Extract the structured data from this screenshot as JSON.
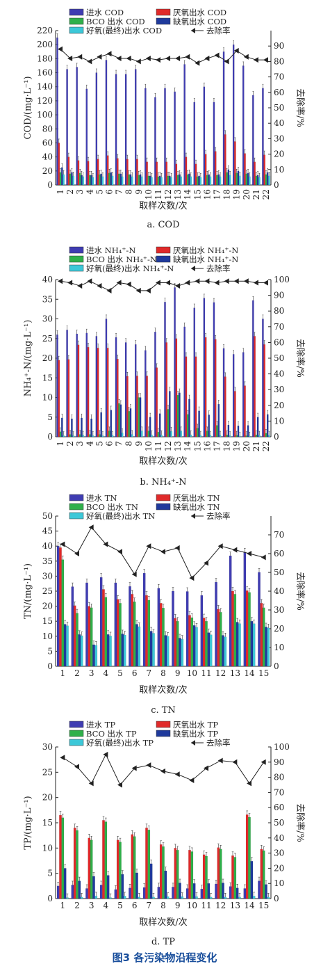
{
  "figure": {
    "caption": "图3 各污染物沿程变化"
  },
  "colors": {
    "influent": "#3f3cb2",
    "anaerobic": "#e02a2a",
    "bco": "#2fb04a",
    "anoxic": "#1f3a9c",
    "aerobic": "#3cc8d8",
    "removal": "#222222"
  },
  "chart_data": [
    {
      "type": "bar",
      "subtitle": "a. COD",
      "xlabel": "取样次数/次",
      "ylabel": "COD/(mg·L⁻¹)",
      "y2label": "去除率/%",
      "ylim": [
        0,
        220
      ],
      "yticks": [
        0,
        20,
        40,
        60,
        80,
        100,
        120,
        140,
        160,
        180,
        200,
        220
      ],
      "y2lim": [
        0,
        100
      ],
      "y2ticks": [
        0,
        10,
        20,
        30,
        40,
        50,
        60,
        70,
        80,
        90
      ],
      "categories": [
        "1",
        "2",
        "3",
        "4",
        "5",
        "6",
        "7",
        "8",
        "9",
        "10",
        "11",
        "12",
        "13",
        "14",
        "15",
        "16",
        "17",
        "18",
        "19",
        "20",
        "21",
        "22"
      ],
      "series": [
        {
          "name": "进水 COD",
          "color": "#3f3cb2",
          "values": [
            210,
            165,
            168,
            137,
            160,
            178,
            158,
            158,
            165,
            138,
            125,
            138,
            133,
            172,
            118,
            140,
            118,
            190,
            200,
            170,
            128,
            138
          ]
        },
        {
          "name": "厌氧出水 COD",
          "color": "#e02a2a",
          "values": [
            60,
            40,
            35,
            34,
            37,
            42,
            38,
            37,
            37,
            33,
            33,
            33,
            30,
            40,
            30,
            44,
            48,
            72,
            62,
            45,
            33,
            43
          ]
        },
        {
          "name": "BCO 出水 COD",
          "color": "#2fb04a",
          "values": [
            18,
            16,
            17,
            14,
            15,
            17,
            16,
            15,
            14,
            13,
            12,
            13,
            14,
            15,
            12,
            14,
            14,
            18,
            17,
            16,
            13,
            15
          ]
        },
        {
          "name": "缺氧出水 COD",
          "color": "#1f3a9c",
          "values": [
            25,
            18,
            14,
            14,
            16,
            18,
            16,
            15,
            15,
            13,
            13,
            13,
            15,
            16,
            13,
            15,
            15,
            22,
            20,
            17,
            14,
            18
          ]
        },
        {
          "name": "好氧(最终)出水 COD",
          "color": "#3cc8d8",
          "values": [
            15,
            13,
            12,
            11,
            12,
            13,
            12,
            12,
            12,
            11,
            11,
            11,
            12,
            12,
            11,
            12,
            12,
            14,
            13,
            12,
            11,
            13
          ]
        }
      ],
      "removal": {
        "name": "去除率",
        "values": [
          88,
          82,
          83,
          80,
          83,
          85,
          82,
          82,
          80,
          82,
          81,
          82,
          82,
          83,
          79,
          82,
          84,
          80,
          87,
          83,
          81,
          81
        ]
      }
    },
    {
      "type": "bar",
      "subtitle": "b. NH₄⁺-N",
      "xlabel": "取样次数/次",
      "ylabel": "NH₄⁺-N/(mg·L⁻¹)",
      "y2label": "去除率/%",
      "ylim": [
        0,
        40
      ],
      "yticks": [
        0,
        5,
        10,
        15,
        20,
        25,
        30,
        35,
        40
      ],
      "y2lim": [
        0,
        100
      ],
      "y2ticks": [
        0,
        10,
        20,
        30,
        40,
        50,
        60,
        70,
        80,
        90,
        100
      ],
      "categories": [
        "1",
        "2",
        "3",
        "4",
        "5",
        "6",
        "7",
        "8",
        "9",
        "10",
        "11",
        "12",
        "13",
        "14",
        "15",
        "16",
        "17",
        "18",
        "19",
        "20",
        "21",
        "22"
      ],
      "series": [
        {
          "name": "进水 NH₄⁺-N",
          "color": "#3f3cb2",
          "values": [
            26,
            27.2,
            26.2,
            26.4,
            25.6,
            30,
            25.3,
            24,
            23.5,
            22,
            26.7,
            34.3,
            38,
            28,
            32.8,
            35.3,
            34.2,
            22.5,
            21,
            21.5,
            34.7,
            30
          ]
        },
        {
          "name": "厌氧出水 NH₄⁺-N",
          "color": "#e02a2a",
          "values": [
            19.5,
            19.7,
            23.4,
            22.8,
            22.6,
            22.6,
            19.8,
            15.4,
            15.5,
            15.5,
            17.6,
            24,
            25,
            20.4,
            20.4,
            25.3,
            24.8,
            15.3,
            11.6,
            13,
            25.6,
            23.5
          ]
        },
        {
          "name": "BCO 出水 NH₄⁺-N",
          "color": "#2fb04a",
          "values": [
            1.3,
            0.6,
            0.6,
            0.6,
            0.6,
            1.5,
            8.5,
            6.5,
            10,
            1.5,
            1.2,
            7,
            10.6,
            5.7,
            2.2,
            1.5,
            2.9,
            0.5,
            0.4,
            0.3,
            0.5,
            0.9
          ]
        },
        {
          "name": "缺氧出水 NH₄⁺-N",
          "color": "#1f3a9c",
          "values": [
            4.8,
            4.6,
            4.8,
            4.6,
            6.2,
            6.8,
            8.2,
            7.2,
            10,
            5,
            5.9,
            11.6,
            11.2,
            9.6,
            6.6,
            5.6,
            8.3,
            3,
            2.8,
            2.9,
            5,
            5.7
          ]
        },
        {
          "name": "好氧(最终)出水 NH₄⁺-N",
          "color": "#3cc8d8",
          "values": [
            0.3,
            0.3,
            0.4,
            0.3,
            0.3,
            0.4,
            1,
            0.6,
            1.5,
            0.5,
            0.5,
            1.4,
            1.5,
            0.5,
            0.4,
            0.4,
            0.4,
            0.3,
            0.2,
            0.2,
            0.4,
            0.4
          ]
        }
      ],
      "removal": {
        "name": "去除率",
        "values": [
          99,
          98,
          96,
          99,
          96,
          93,
          98,
          97,
          93,
          93,
          98,
          98,
          96,
          98,
          99,
          99,
          98,
          99,
          99,
          99,
          98,
          98
        ]
      }
    },
    {
      "type": "bar",
      "subtitle": "c. TN",
      "xlabel": "取样次数/次",
      "ylabel": "TN/(mg·L⁻¹)",
      "y2label": "去除率/%",
      "ylim": [
        0,
        50
      ],
      "yticks": [
        0,
        5,
        10,
        15,
        20,
        25,
        30,
        35,
        40,
        45,
        50
      ],
      "y2lim": [
        0,
        80
      ],
      "y2ticks": [
        0,
        10,
        20,
        30,
        40,
        50,
        60,
        70
      ],
      "categories": [
        "1",
        "2",
        "3",
        "4",
        "5",
        "6",
        "7",
        "8",
        "9",
        "10",
        "11",
        "12",
        "13",
        "14",
        "15"
      ],
      "series": [
        {
          "name": "进水 TN",
          "color": "#3f3cb2",
          "values": [
            40,
            26.5,
            27.8,
            29.6,
            27.8,
            26.6,
            31,
            26,
            25,
            24.9,
            23.6,
            28,
            36.8,
            38,
            31.3
          ]
        },
        {
          "name": "厌氧出水 TN",
          "color": "#e02a2a",
          "values": [
            39.5,
            20.2,
            20,
            25.6,
            22.3,
            24,
            23.6,
            21,
            16,
            17,
            16.1,
            19,
            25,
            25.2,
            21
          ]
        },
        {
          "name": "BCO 出水 TN",
          "color": "#2fb04a",
          "values": [
            35.5,
            17.7,
            19.5,
            23,
            21,
            21.5,
            22,
            19.4,
            15,
            16.2,
            15,
            18,
            24,
            24.6,
            19.5
          ]
        },
        {
          "name": "缺氧出水 TN",
          "color": "#1f3a9c",
          "values": [
            14,
            10.6,
            7.2,
            10.6,
            10.8,
            14,
            11.7,
            10.3,
            9.4,
            13.6,
            11.2,
            10.3,
            14.7,
            15,
            13.1
          ]
        },
        {
          "name": "好氧(最终)出水 TN",
          "color": "#3cc8d8",
          "values": [
            13.5,
            10.2,
            7,
            10.1,
            10.4,
            13.2,
            11,
            10,
            9,
            13,
            10.5,
            9.8,
            14.2,
            14.2,
            12.8
          ]
        }
      ],
      "removal": {
        "name": "去除率",
        "values": [
          65,
          60,
          74,
          65,
          61,
          49,
          64,
          61,
          63,
          47,
          55,
          64,
          62,
          60,
          58
        ]
      }
    },
    {
      "type": "bar",
      "subtitle": "d. TP",
      "xlabel": "取样次数/次",
      "ylabel": "TP/(mg·L⁻¹)",
      "y2label": "去除率/%",
      "ylim": [
        0,
        30
      ],
      "yticks": [
        0,
        5,
        10,
        15,
        20,
        25,
        30
      ],
      "y2lim": [
        0,
        100
      ],
      "y2ticks": [
        0,
        10,
        20,
        30,
        40,
        50,
        60,
        70,
        80,
        90,
        100
      ],
      "categories": [
        "1",
        "2",
        "3",
        "4",
        "5",
        "6",
        "7",
        "8",
        "9",
        "10",
        "11",
        "12",
        "13",
        "14",
        "15"
      ],
      "series": [
        {
          "name": "进水 TP",
          "color": "#3f3cb2",
          "values": [
            2.5,
            2.7,
            2,
            2.7,
            1.8,
            2.1,
            2.2,
            2.3,
            2.3,
            2,
            1.9,
            2.9,
            2.4,
            2,
            3.5
          ]
        },
        {
          "name": "厌氧出水 TP",
          "color": "#e02a2a",
          "values": [
            16.5,
            14,
            12,
            15.5,
            11.6,
            12.7,
            14,
            10.7,
            10,
            9.6,
            8.7,
            10.1,
            8.5,
            16.6,
            9.8
          ]
        },
        {
          "name": "BCO 出水 TP",
          "color": "#2fb04a",
          "values": [
            16,
            13.5,
            11.6,
            15.2,
            11.2,
            12.3,
            13.6,
            10.3,
            9.6,
            9.3,
            8.4,
            9.8,
            8.2,
            16.1,
            9.5
          ]
        },
        {
          "name": "缺氧出水 TP",
          "color": "#1f3a9c",
          "values": [
            6,
            3.5,
            4.4,
            4.6,
            4.8,
            5.1,
            6.9,
            5.5,
            3.1,
            3,
            3,
            3.1,
            2.1,
            7.4,
            2.8
          ]
        },
        {
          "name": "好氧(最终)出水 TP",
          "color": "#3cc8d8",
          "values": [
            0.2,
            0.3,
            0.5,
            0.2,
            0.5,
            0.3,
            0.3,
            0.4,
            0.4,
            0.4,
            0.3,
            0.3,
            0.3,
            0.5,
            0.3
          ]
        }
      ],
      "removal": {
        "name": "去除率",
        "values": [
          93,
          87,
          76,
          95,
          75,
          86,
          88,
          84,
          82,
          78,
          86,
          91,
          90,
          76,
          90
        ]
      }
    }
  ]
}
